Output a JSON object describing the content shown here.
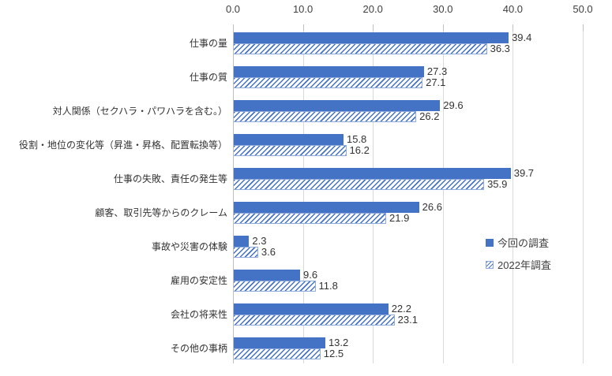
{
  "chart_data": {
    "type": "bar",
    "orientation": "horizontal",
    "title": "",
    "categories": [
      "仕事の量",
      "仕事の質",
      "対人関係（セクハラ・パワハラを含む。）",
      "役割・地位の変化等（昇進・昇格、配置転換等）",
      "仕事の失敗、責任の発生等",
      "顧客、取引先等からのクレーム",
      "事故や災害の体験",
      "雇用の安定性",
      "会社の将来性",
      "その他の事柄"
    ],
    "series": [
      {
        "name": "今回の調査",
        "style": "solid",
        "color": "#4472C4",
        "values": [
          39.4,
          27.3,
          29.6,
          15.8,
          39.7,
          26.6,
          2.3,
          9.6,
          22.2,
          13.2
        ]
      },
      {
        "name": "2022年調査",
        "style": "hatched",
        "stripe_color": "#4472C4",
        "border_color": "#8FAADC",
        "fill_color": "#FFFFFF",
        "values": [
          36.3,
          27.1,
          26.2,
          16.2,
          35.9,
          21.9,
          3.6,
          11.8,
          23.1,
          12.5
        ]
      }
    ],
    "x_axis": {
      "position": "top",
      "min": 0,
      "max": 50,
      "tick_values": [
        0,
        10,
        20,
        30,
        40,
        50
      ],
      "tick_labels": [
        "0.0",
        "10.0",
        "20.0",
        "30.0",
        "40.0",
        "50.0"
      ]
    },
    "value_labels": {
      "decimals": 1,
      "position": "outside-end"
    },
    "legend": {
      "position": "right"
    },
    "grid": {
      "vertical": true
    },
    "colors": {
      "gridline": "#D9D9D9",
      "axis_line": "#BFBFBF",
      "tick": "#BFBFBF",
      "text": "#404040",
      "category_text": "#333333",
      "value_text": "#333333",
      "background": "#FFFFFF"
    }
  }
}
